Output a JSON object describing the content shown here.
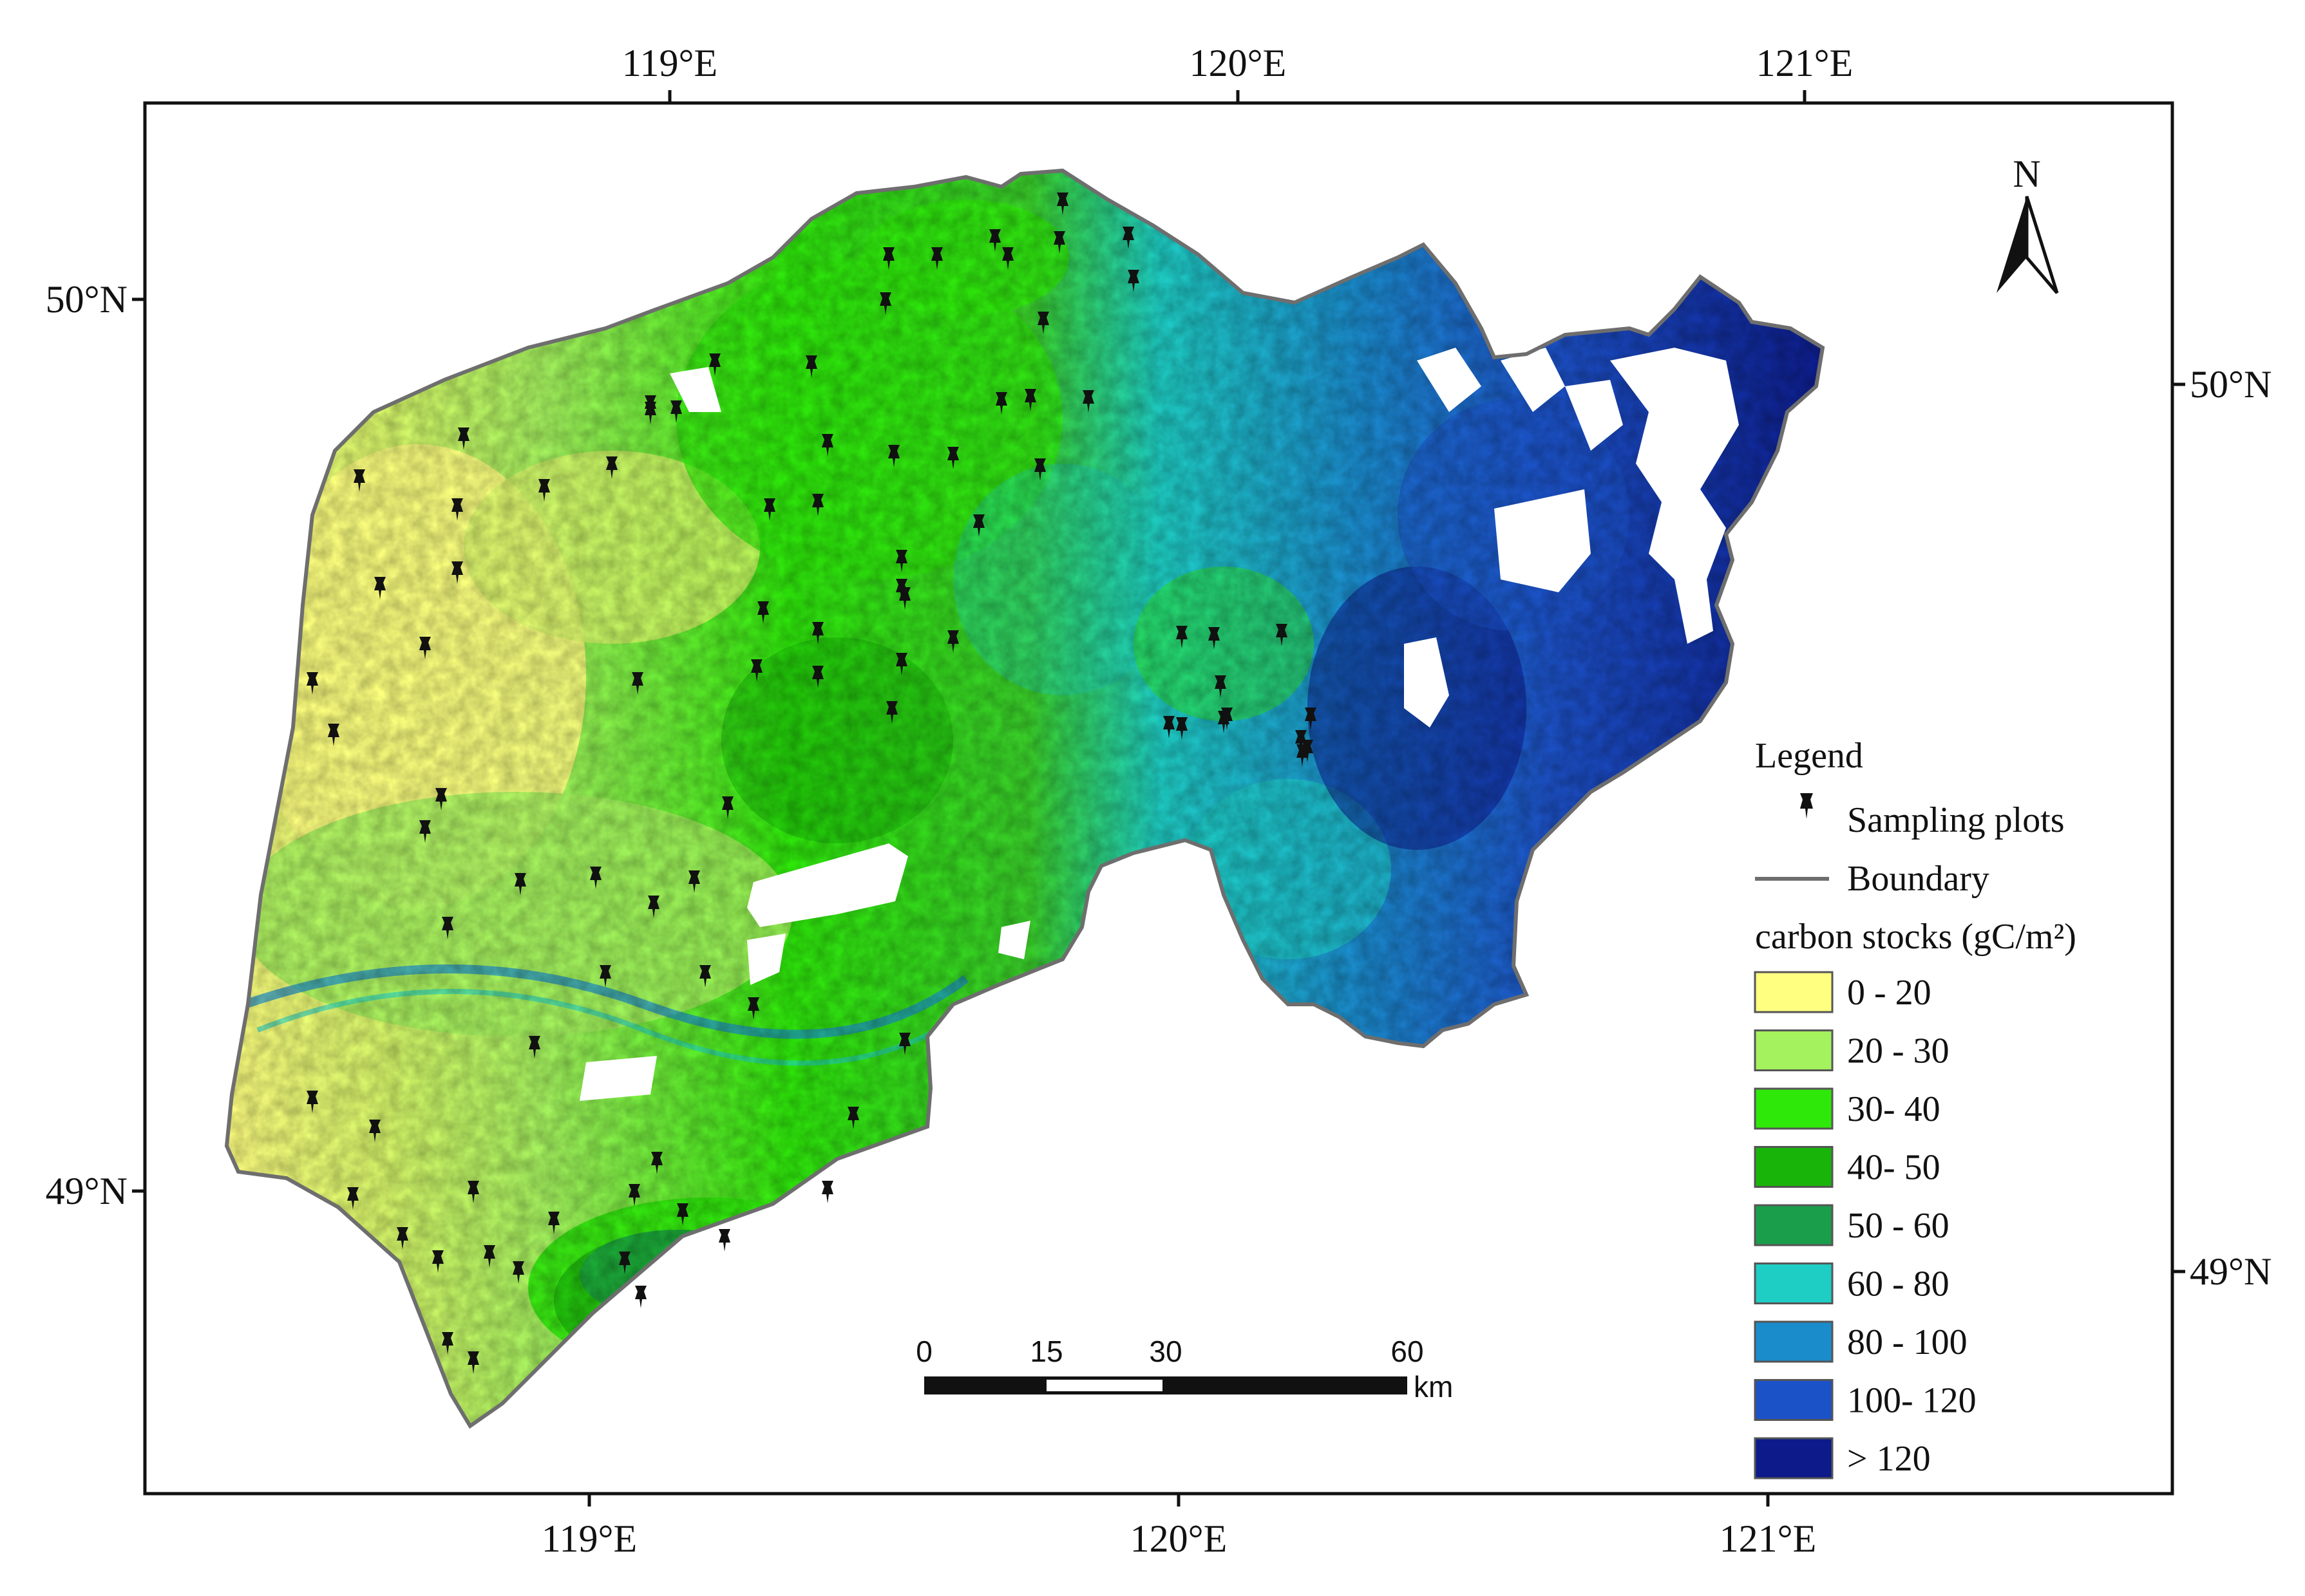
{
  "axes": {
    "top_lon_labels": [
      "119°E",
      "120°E",
      "121°E"
    ],
    "bottom_lon_labels": [
      "119°E",
      "120°E",
      "121°E"
    ],
    "left_lat_labels": [
      "50°N",
      "49°N"
    ],
    "right_lat_labels": [
      "50°N",
      "49°N"
    ]
  },
  "north_arrow": {
    "label": "N"
  },
  "legend": {
    "title": "Legend",
    "sampling_label": "Sampling plots",
    "boundary_label": "Boundary",
    "carbon_title": "carbon stocks (gC/m²)",
    "classes": [
      {
        "label": "0 - 20",
        "color": "#ffff80"
      },
      {
        "label": "20 - 30",
        "color": "#a4f25e"
      },
      {
        "label": "30- 40",
        "color": "#2ee80a"
      },
      {
        "label": "40- 50",
        "color": "#19b40a"
      },
      {
        "label": "50 - 60",
        "color": "#1a9e4c"
      },
      {
        "label": "60 - 80",
        "color": "#1ecdc4"
      },
      {
        "label": "80 - 100",
        "color": "#1a8ccc"
      },
      {
        "label": "100- 120",
        "color": "#1c52c8"
      },
      {
        "label": "> 120",
        "color": "#0c1a8a"
      }
    ]
  },
  "scale_bar": {
    "labels": [
      "0",
      "15",
      "30",
      "60"
    ],
    "unit": "km"
  },
  "map_data": {
    "boundary_color": "#6e6e6e",
    "marker_icon": "pushpin-icon",
    "sampling_plot_count": 78
  }
}
